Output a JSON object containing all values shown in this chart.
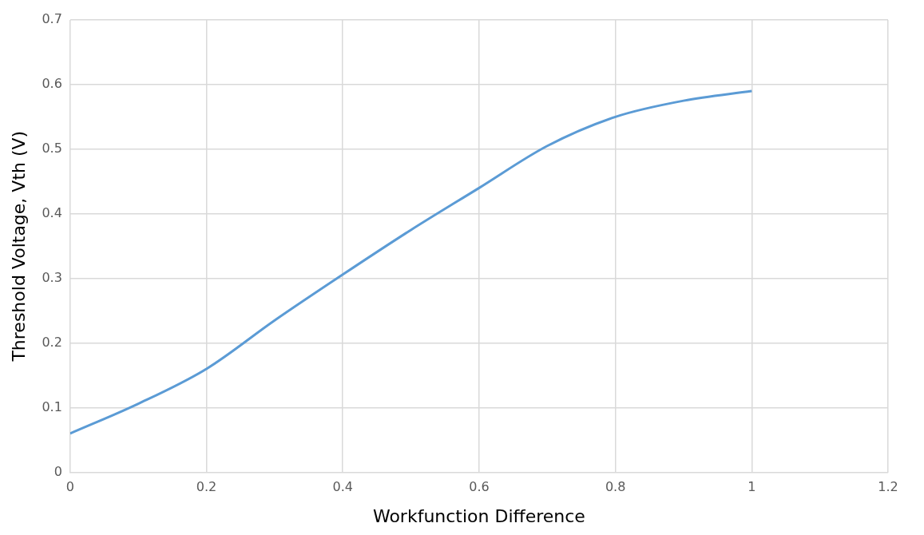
{
  "chart_data": {
    "type": "line",
    "xlabel": "Workfunction Difference",
    "ylabel": "Threshold Voltage, Vth (V)",
    "x": [
      0,
      0.1,
      0.2,
      0.3,
      0.4,
      0.5,
      0.6,
      0.7,
      0.8,
      0.9,
      1
    ],
    "series": [
      {
        "color": "#5b9bd5",
        "values": [
          0.06,
          0.106,
          0.16,
          0.235,
          0.306,
          0.375,
          0.44,
          0.505,
          0.55,
          0.575,
          0.59
        ]
      }
    ],
    "xlim": [
      0,
      1.2
    ],
    "xticks": [
      0,
      0.2,
      0.4,
      0.6,
      0.8,
      1,
      1.2
    ],
    "ylim": [
      0,
      0.7
    ],
    "yticks": [
      0,
      0.1,
      0.2,
      0.3,
      0.4,
      0.5,
      0.6,
      0.7
    ],
    "grid": true,
    "legend": false,
    "marker": "none",
    "line_style": "solid"
  }
}
